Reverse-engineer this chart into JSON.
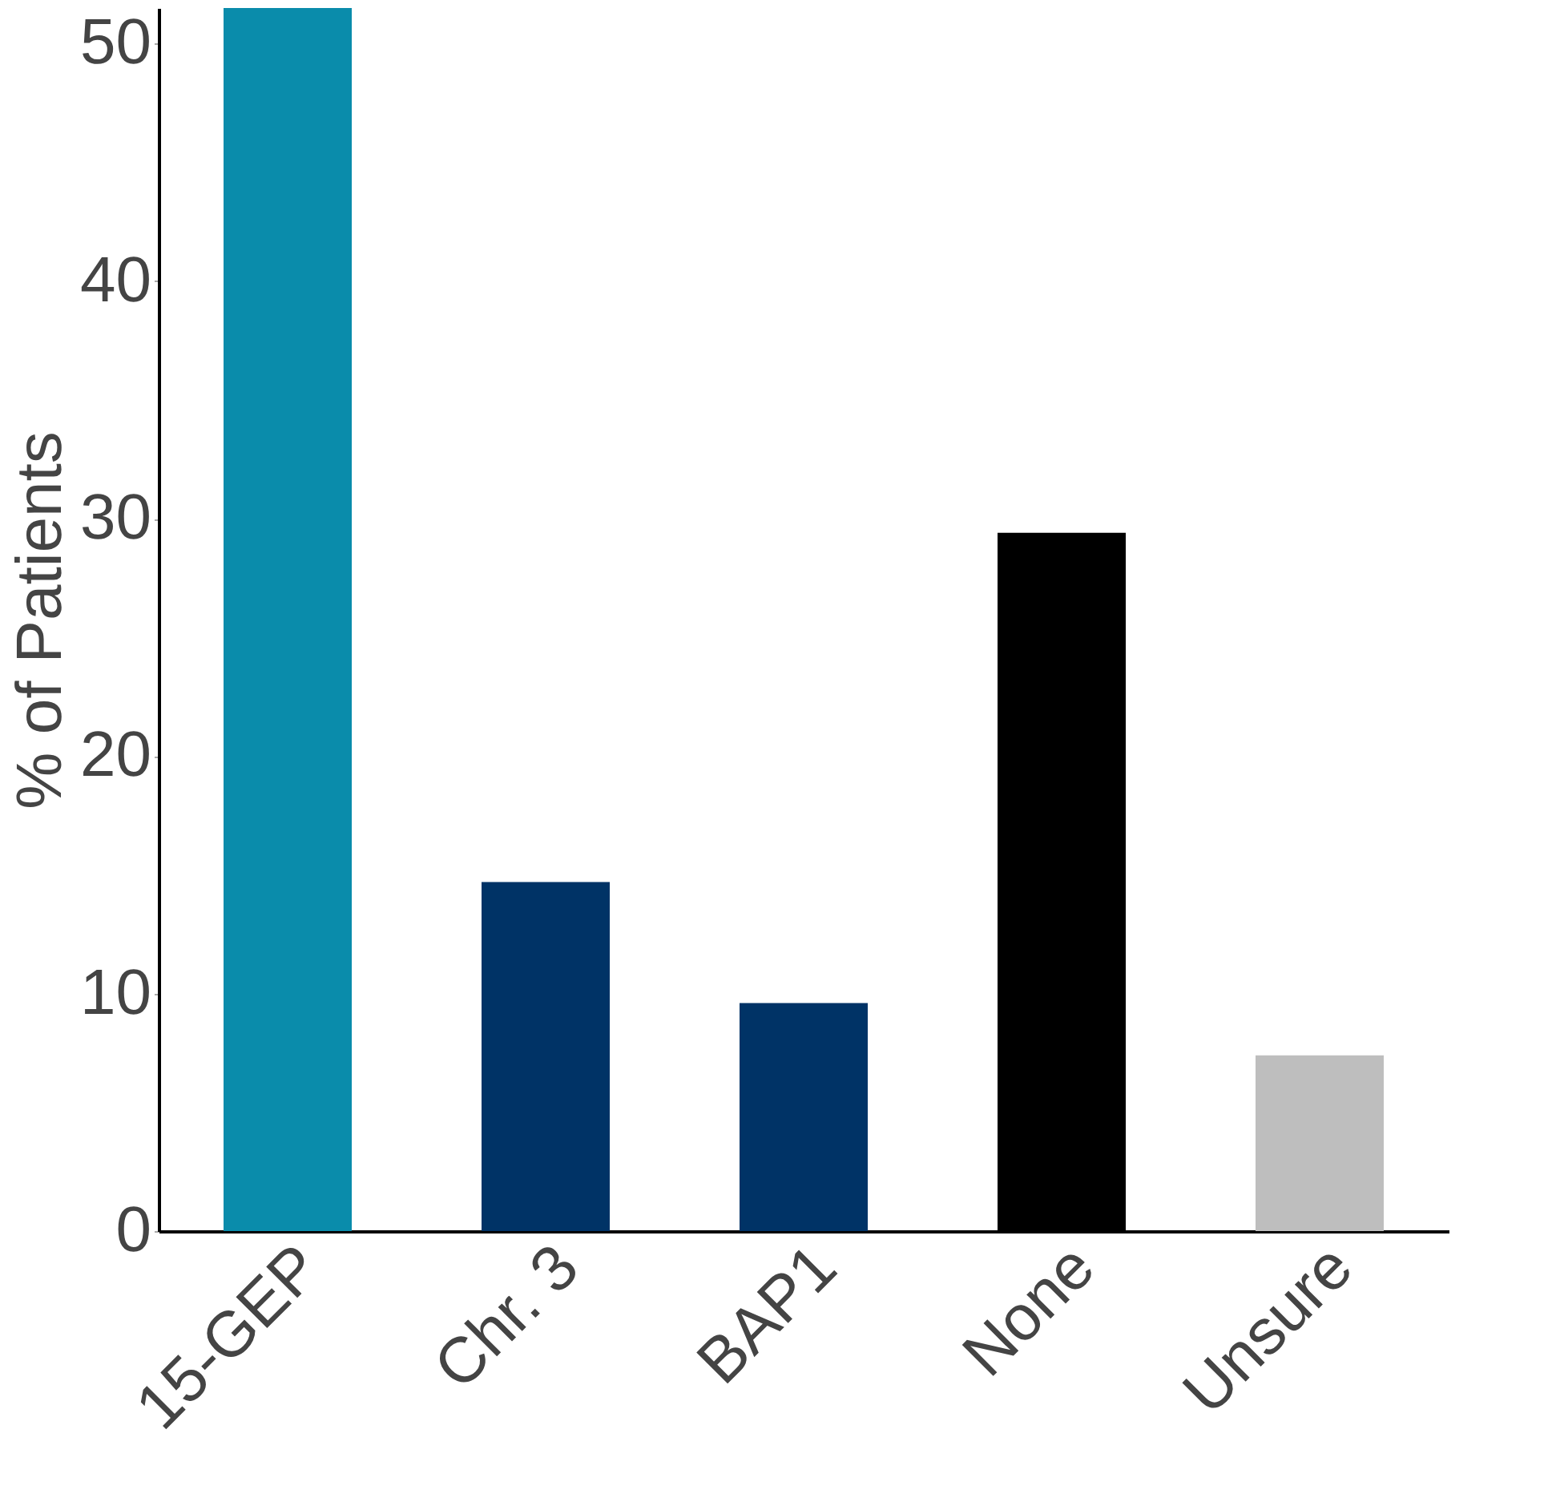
{
  "chart_data": {
    "type": "bar",
    "ylabel": "% of Patients",
    "categories": [
      "15-GEP",
      "Chr. 3",
      "BAP1",
      "None",
      "Unsure"
    ],
    "values": [
      51.5,
      14.7,
      9.6,
      29.4,
      7.4
    ],
    "colors": [
      "#0a8cab",
      "#003366",
      "#003366",
      "#000000",
      "#bebebe"
    ],
    "ylim": [
      0,
      51.5
    ],
    "yticks": [
      0,
      10,
      20,
      30,
      40,
      50
    ],
    "grid": false
  }
}
